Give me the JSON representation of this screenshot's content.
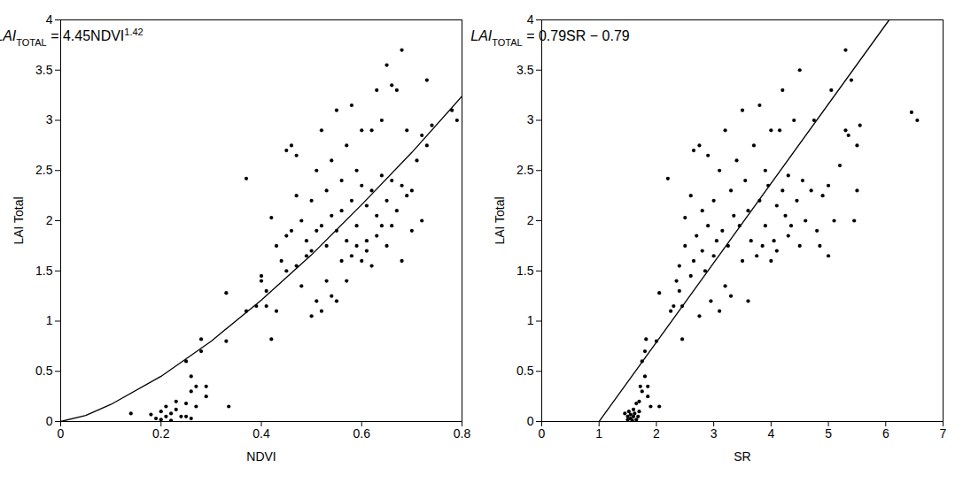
{
  "chart_data": [
    {
      "type": "scatter",
      "x_label": "NDVI",
      "y_label": "LAI Total",
      "annotation": [
        {
          "text": "LAI",
          "style": "italic"
        },
        {
          "text": "TOTAL",
          "style": "subscript"
        },
        {
          "text": " = 4.45NDVI",
          "style": "normal"
        },
        {
          "text": "1.42",
          "style": "superscript"
        }
      ],
      "xlim": [
        0,
        0.8
      ],
      "xticks": [
        0,
        0.2,
        0.4,
        0.6,
        0.8
      ],
      "ylim": [
        0,
        4
      ],
      "yticks": [
        0,
        0.5,
        1,
        1.5,
        2,
        2.5,
        3,
        3.5,
        4
      ],
      "series": [
        {
          "type": "scatter",
          "marker": "dot",
          "color": "#000000",
          "x": [
            0.14,
            0.18,
            0.19,
            0.2,
            0.2,
            0.21,
            0.21,
            0.22,
            0.22,
            0.23,
            0.23,
            0.24,
            0.25,
            0.25,
            0.26,
            0.26,
            0.26,
            0.27,
            0.27,
            0.28,
            0.28,
            0.29,
            0.29,
            0.25,
            0.33,
            0.33,
            0.335,
            0.37,
            0.37,
            0.39,
            0.4,
            0.4,
            0.41,
            0.41,
            0.42,
            0.42,
            0.43,
            0.43,
            0.44,
            0.45,
            0.45,
            0.45,
            0.46,
            0.46,
            0.47,
            0.47,
            0.47,
            0.48,
            0.48,
            0.49,
            0.49,
            0.5,
            0.5,
            0.5,
            0.51,
            0.51,
            0.51,
            0.52,
            0.52,
            0.52,
            0.53,
            0.53,
            0.53,
            0.54,
            0.54,
            0.54,
            0.55,
            0.55,
            0.55,
            0.56,
            0.56,
            0.56,
            0.57,
            0.57,
            0.57,
            0.58,
            0.58,
            0.58,
            0.59,
            0.59,
            0.59,
            0.6,
            0.6,
            0.6,
            0.61,
            0.61,
            0.61,
            0.62,
            0.62,
            0.62,
            0.63,
            0.63,
            0.63,
            0.64,
            0.64,
            0.64,
            0.65,
            0.65,
            0.65,
            0.66,
            0.66,
            0.66,
            0.67,
            0.67,
            0.68,
            0.68,
            0.68,
            0.69,
            0.69,
            0.7,
            0.7,
            0.71,
            0.72,
            0.72,
            0.73,
            0.73,
            0.74,
            0.78,
            0.79
          ],
          "values": [
            0.08,
            0.07,
            0.03,
            0.1,
            0.02,
            0.05,
            0.15,
            0.08,
            0.01,
            0.12,
            0.2,
            0.05,
            0.18,
            0.6,
            0.45,
            0.3,
            0.03,
            0.15,
            0.35,
            0.7,
            0.82,
            0.25,
            0.35,
            0.05,
            1.28,
            0.8,
            0.15,
            2.42,
            1.1,
            1.15,
            1.45,
            1.4,
            1.3,
            1.15,
            2.03,
            0.82,
            1.75,
            1.1,
            1.6,
            2.7,
            1.85,
            1.5,
            2.75,
            1.9,
            2.65,
            1.55,
            2.25,
            1.35,
            2.0,
            1.65,
            1.8,
            1.05,
            1.7,
            2.2,
            1.2,
            1.9,
            2.5,
            1.1,
            1.95,
            2.9,
            1.4,
            2.3,
            1.75,
            1.25,
            2.05,
            2.6,
            1.2,
            1.9,
            3.1,
            2.4,
            1.6,
            2.1,
            1.4,
            2.75,
            1.8,
            3.15,
            2.2,
            1.65,
            1.75,
            2.5,
            1.95,
            2.35,
            1.6,
            2.9,
            1.8,
            2.15,
            1.7,
            2.9,
            2.3,
            1.55,
            3.3,
            2.05,
            1.85,
            2.45,
            1.95,
            3.0,
            2.2,
            1.75,
            3.55,
            2.4,
            3.35,
            1.95,
            2.1,
            3.3,
            3.7,
            2.35,
            1.6,
            2.9,
            2.25,
            2.3,
            1.9,
            2.6,
            2.85,
            2.0,
            3.4,
            2.75,
            2.95,
            3.1,
            3.0
          ]
        },
        {
          "type": "line",
          "line_style": "solid",
          "color": "#000000",
          "x": [
            0,
            0.05,
            0.1,
            0.2,
            0.3,
            0.4,
            0.5,
            0.6,
            0.7,
            0.8
          ],
          "values": [
            0,
            0.06,
            0.17,
            0.45,
            0.8,
            1.21,
            1.66,
            2.16,
            2.68,
            3.24
          ]
        }
      ]
    },
    {
      "type": "scatter",
      "x_label": "SR",
      "y_label": "LAI Total",
      "annotation": [
        {
          "text": "LAI",
          "style": "italic"
        },
        {
          "text": "TOTAL",
          "style": "subscript"
        },
        {
          "text": " = 0.79SR − 0.79",
          "style": "normal"
        }
      ],
      "xlim": [
        0,
        7
      ],
      "xticks": [
        0,
        1,
        2,
        3,
        4,
        5,
        6,
        7
      ],
      "ylim": [
        0,
        4
      ],
      "yticks": [
        0,
        0.5,
        1,
        1.5,
        2,
        2.5,
        3,
        3.5,
        4
      ],
      "series": [
        {
          "type": "scatter",
          "marker": "dot",
          "color": "#000000",
          "x": [
            1.45,
            1.5,
            1.5,
            1.52,
            1.55,
            1.55,
            1.58,
            1.6,
            1.6,
            1.62,
            1.65,
            1.65,
            1.68,
            1.7,
            1.7,
            1.72,
            1.75,
            1.75,
            1.8,
            1.8,
            1.82,
            1.85,
            1.85,
            1.9,
            2.0,
            2.05,
            2.05,
            2.2,
            2.25,
            2.3,
            2.35,
            2.4,
            2.4,
            2.45,
            2.45,
            2.5,
            2.5,
            2.6,
            2.6,
            2.65,
            2.65,
            2.7,
            2.75,
            2.75,
            2.8,
            2.8,
            2.85,
            2.9,
            2.9,
            2.95,
            3.0,
            3.0,
            3.05,
            3.1,
            3.1,
            3.15,
            3.2,
            3.2,
            3.25,
            3.3,
            3.3,
            3.35,
            3.4,
            3.45,
            3.5,
            3.5,
            3.55,
            3.6,
            3.6,
            3.65,
            3.7,
            3.75,
            3.8,
            3.8,
            3.85,
            3.9,
            3.9,
            3.95,
            4.0,
            4.0,
            4.05,
            4.1,
            4.1,
            4.15,
            4.2,
            4.2,
            4.25,
            4.3,
            4.3,
            4.35,
            4.4,
            4.45,
            4.5,
            4.5,
            4.55,
            4.6,
            4.7,
            4.75,
            4.8,
            4.85,
            4.9,
            5.0,
            5.0,
            5.05,
            5.1,
            5.2,
            5.3,
            5.3,
            5.35,
            5.4,
            5.45,
            5.5,
            5.55,
            5.5,
            6.45,
            6.55
          ],
          "values": [
            0.08,
            0.05,
            0.02,
            0.1,
            0.03,
            0.07,
            0.01,
            0.05,
            0.12,
            0.08,
            0.02,
            0.18,
            0.05,
            0.2,
            0.1,
            0.35,
            0.6,
            0.3,
            0.45,
            0.7,
            0.82,
            0.25,
            0.35,
            0.15,
            0.8,
            0.15,
            1.28,
            2.42,
            1.1,
            1.15,
            1.4,
            1.55,
            1.3,
            0.82,
            1.15,
            1.75,
            2.03,
            1.45,
            2.25,
            1.6,
            2.7,
            1.85,
            2.75,
            1.05,
            1.7,
            2.1,
            1.5,
            1.95,
            2.65,
            1.2,
            1.65,
            2.2,
            1.8,
            1.1,
            2.5,
            1.9,
            2.9,
            1.35,
            1.75,
            2.3,
            1.25,
            2.05,
            2.6,
            1.95,
            3.1,
            1.6,
            2.4,
            1.2,
            2.1,
            1.8,
            2.75,
            1.65,
            2.2,
            3.15,
            1.75,
            2.5,
            1.95,
            2.35,
            1.6,
            2.9,
            1.8,
            2.15,
            1.7,
            2.9,
            2.3,
            3.3,
            2.05,
            1.85,
            2.45,
            1.95,
            3.0,
            2.2,
            3.5,
            1.75,
            2.4,
            2.0,
            2.3,
            3.0,
            1.9,
            1.75,
            2.25,
            2.35,
            1.65,
            3.3,
            2.0,
            2.55,
            2.9,
            3.7,
            2.85,
            3.4,
            2.0,
            2.75,
            2.95,
            2.3,
            3.08,
            3.0
          ]
        },
        {
          "type": "line",
          "line_style": "solid",
          "color": "#000000",
          "x": [
            1,
            6.06
          ],
          "values": [
            0,
            4
          ]
        }
      ]
    }
  ]
}
